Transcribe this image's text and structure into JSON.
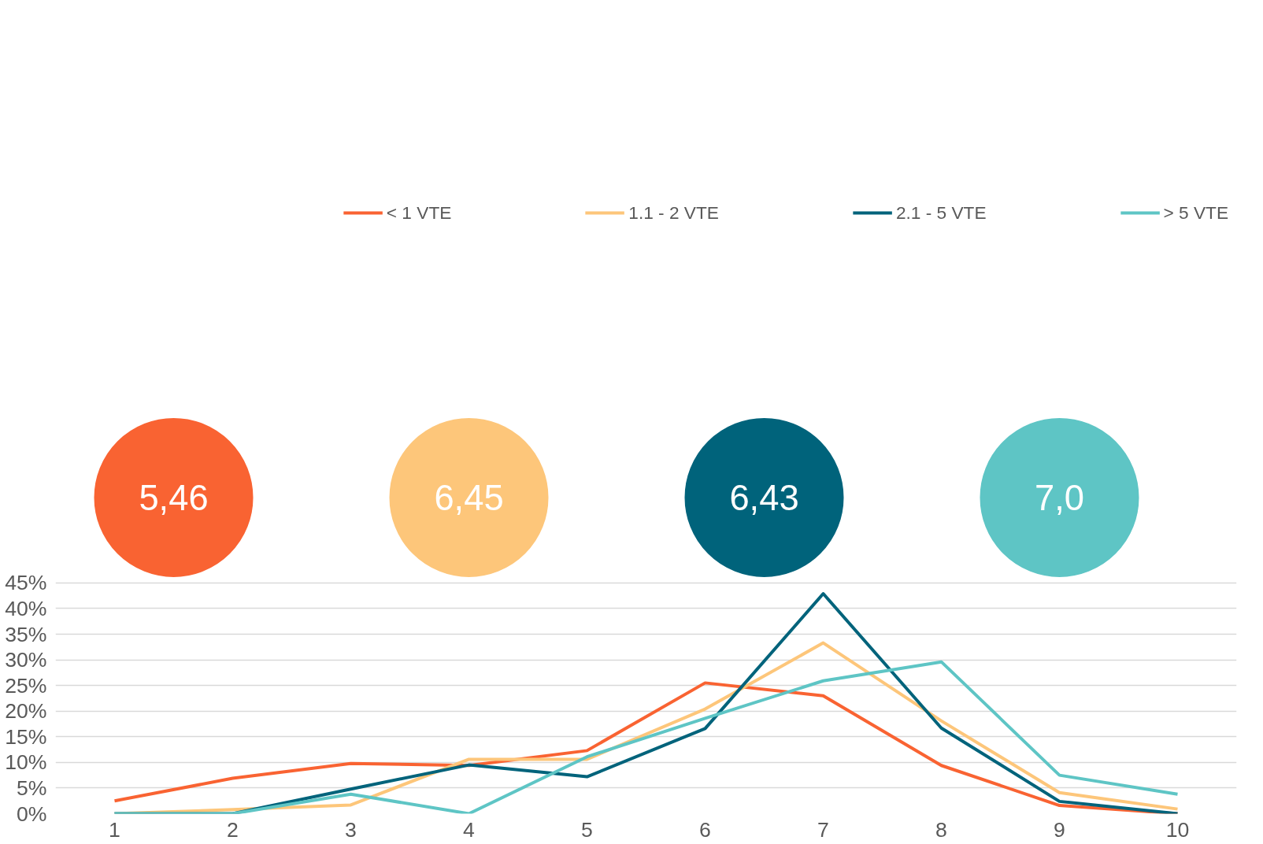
{
  "chart_data": {
    "type": "line",
    "categories": [
      "1",
      "2",
      "3",
      "4",
      "5",
      "6",
      "7",
      "8",
      "9",
      "10"
    ],
    "series": [
      {
        "name": "< 1 VTE",
        "color": "#f96332",
        "values": [
          2.5,
          6.9,
          9.8,
          9.4,
          12.3,
          25.5,
          23.0,
          9.4,
          1.6,
          0
        ]
      },
      {
        "name": "1.1 - 2 VTE",
        "color": "#fdc67a",
        "values": [
          0,
          0.8,
          1.7,
          10.6,
          10.6,
          20.4,
          33.3,
          18.1,
          4.1,
          0.9
        ]
      },
      {
        "name": "2.1 - 5 VTE",
        "color": "#00637b",
        "values": [
          0,
          0,
          4.8,
          9.5,
          7.2,
          16.6,
          42.9,
          16.7,
          2.4,
          0
        ]
      },
      {
        "name": "> 5 VTE",
        "color": "#5ec5c5",
        "values": [
          0,
          0,
          3.8,
          0,
          11.1,
          18.6,
          25.9,
          29.6,
          7.5,
          3.8
        ]
      }
    ],
    "annotations": [
      "5,46",
      "6,45",
      "6,43",
      "7,0"
    ],
    "ylim": [
      0,
      45
    ],
    "yticks": [
      {
        "value": 0,
        "label": "0%"
      },
      {
        "value": 5,
        "label": "5%"
      },
      {
        "value": 10,
        "label": "10%"
      },
      {
        "value": 15,
        "label": "15%"
      },
      {
        "value": 20,
        "label": "20%"
      },
      {
        "value": 25,
        "label": "25%"
      },
      {
        "value": 30,
        "label": "30%"
      },
      {
        "value": 35,
        "label": "35%"
      },
      {
        "value": 40,
        "label": "40%"
      },
      {
        "value": 45,
        "label": "45%"
      }
    ],
    "grid": "y",
    "legend": "top",
    "marker": "none",
    "line_style": "solid"
  }
}
